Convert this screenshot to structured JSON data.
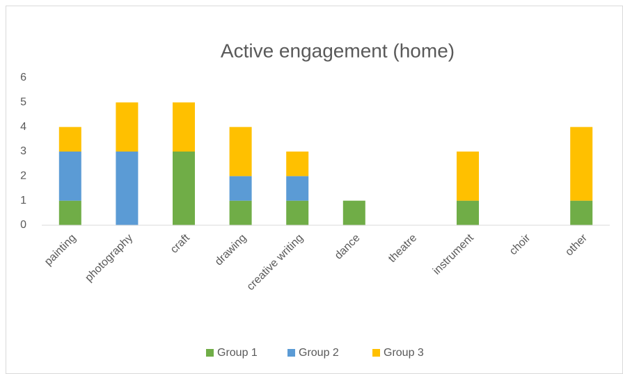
{
  "chart_data": {
    "type": "bar",
    "stacked": true,
    "title": "Active engagement (home)",
    "categories": [
      "painting",
      "photography",
      "craft",
      "drawing",
      "creative writing",
      "dance",
      "theatre",
      "instrument",
      "choir",
      "other"
    ],
    "series": [
      {
        "name": "Group 1",
        "color": "#70ad47",
        "values": [
          1,
          0,
          3,
          1,
          1,
          1,
          0,
          1,
          0,
          1
        ]
      },
      {
        "name": "Group 2",
        "color": "#5b9bd5",
        "values": [
          2,
          3,
          0,
          1,
          1,
          0,
          0,
          0,
          0,
          0
        ]
      },
      {
        "name": "Group 3",
        "color": "#ffc000",
        "values": [
          1,
          2,
          2,
          2,
          1,
          0,
          0,
          2,
          0,
          3
        ]
      }
    ],
    "ylim": [
      0,
      6
    ],
    "yticks": [
      0,
      1,
      2,
      3,
      4,
      5,
      6
    ],
    "grid": false,
    "legend": "bottom"
  }
}
